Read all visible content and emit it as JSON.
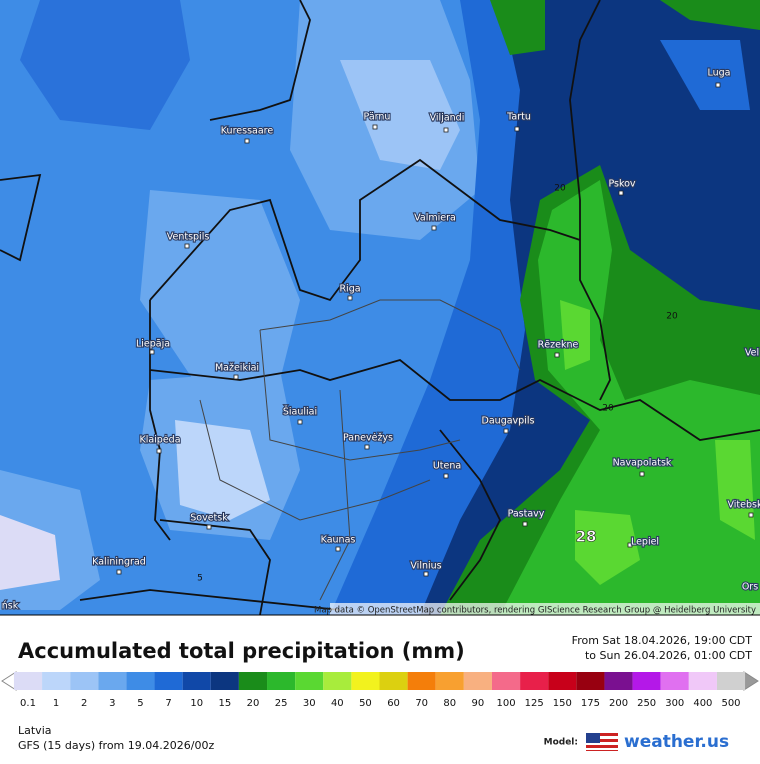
{
  "map": {
    "cities": [
      "Luga",
      "Pärnu",
      "Viljandi",
      "Tartu",
      "Kuressaare",
      "Pskov",
      "Valmiera",
      "Ventspils",
      "Riga",
      "Liepāja",
      "Rēzekne",
      "Mažeikiai",
      "Šiauliai",
      "Panevėžys",
      "Klaipėda",
      "Daugavpils",
      "Utena",
      "Navapolatsk",
      "Vitebsk",
      "Sovetsk",
      "Pastavy",
      "Kaunas",
      "Lepiel",
      "Kaliningrad",
      "Vilnius",
      "Ors",
      "Vel",
      "ńsk"
    ],
    "contour_labels": [
      20,
      20,
      20,
      5,
      28
    ],
    "attribution": "Map data © OpenStreetMap contributors, rendering GIScience Research Group @ Heidelberg University"
  },
  "header": {
    "title": "Accumulated total precipitation (mm)",
    "from": "From Sat 18.04.2026, 19:00 CDT",
    "to": "to Sun 26.04.2026, 01:00 CDT"
  },
  "legend": {
    "values": [
      0.1,
      1,
      2,
      3,
      5,
      7,
      10,
      15,
      20,
      25,
      30,
      40,
      50,
      60,
      70,
      80,
      90,
      100,
      125,
      150,
      175,
      200,
      250,
      300,
      400,
      500
    ],
    "colors": [
      "#dcdcf6",
      "#bcd6fa",
      "#9cc4f6",
      "#6aa8ee",
      "#3e8ce6",
      "#1f6ad6",
      "#1048a8",
      "#0c3680",
      "#1a8c1a",
      "#2cb82c",
      "#5ad832",
      "#a8ec3c",
      "#f2f21e",
      "#dcd010",
      "#f47e0a",
      "#f8a030",
      "#f8b080",
      "#f46a8a",
      "#e8204a",
      "#c8001a",
      "#980010",
      "#7a1090",
      "#b418e8",
      "#e070f0",
      "#f0c8f8",
      "#d0d0d0"
    ]
  },
  "footer": {
    "region": "Latvia",
    "model_run": "GFS (15 days) from  19.04.2026/00z",
    "model_label": "Model:",
    "brand": "weather.us"
  }
}
